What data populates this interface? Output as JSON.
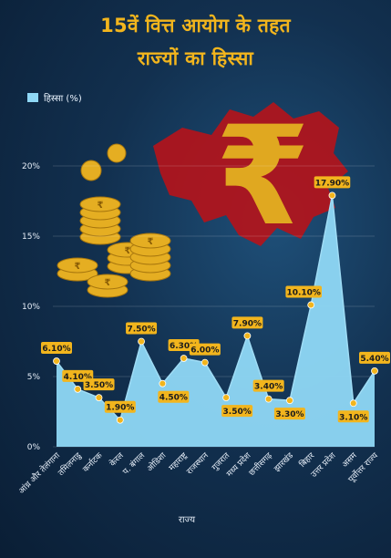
{
  "chart_data": {
    "type": "area",
    "title_line1": "15वें वित्त आयोग के तहत",
    "title_line2": "राज्यों का हिस्सा",
    "xlabel": "राज्य",
    "ylabel": "",
    "ylim": [
      0,
      20
    ],
    "yticks": [
      "0%",
      "5%",
      "10%",
      "15%",
      "20%"
    ],
    "legend": {
      "label": "हिस्सा (%)",
      "position": "top-left",
      "color": "#8fd8f6"
    },
    "grid": true,
    "categories": [
      "आंध्र और तेलंगाना",
      "तमिलनाडु",
      "कर्नाटक",
      "केरल",
      "प. बंगाल",
      "ओडिशा",
      "महाराष्ट्र",
      "राजस्थान",
      "गुजरात",
      "मध्य प्रदेश",
      "छत्तीसगढ़",
      "झारखंड",
      "बिहार",
      "उत्तर प्रदेश",
      "असम",
      "पूर्वोत्तर राज्य"
    ],
    "values": [
      6.1,
      4.1,
      3.5,
      1.9,
      7.5,
      4.5,
      6.3,
      6.0,
      3.5,
      7.9,
      3.4,
      3.3,
      10.1,
      17.9,
      3.1,
      5.4
    ],
    "data_labels": [
      "6.10%",
      "4.10%",
      "3.50%",
      "1.90%",
      "7.50%",
      "4.50%",
      "6.30%",
      "6.00%",
      "3.50%",
      "7.90%",
      "3.40%",
      "3.30%",
      "10.10%",
      "17.90%",
      "3.10%",
      "5.40%"
    ],
    "colors": {
      "area": "#8fd8f6",
      "line": "#9fdcf5",
      "point": "#f2b51d",
      "label_bg": "#f2b51d"
    }
  }
}
